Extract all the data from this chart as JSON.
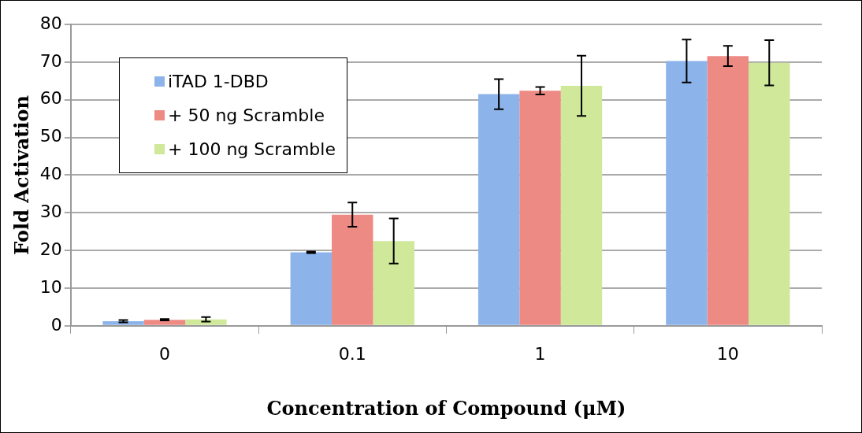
{
  "chart_data": {
    "type": "bar",
    "xlabel": "Concentration of Compound (μM)",
    "ylabel": "Fold Activation",
    "categories": [
      "0",
      "0.1",
      "1",
      "10"
    ],
    "series": [
      {
        "name": "iTAD 1-DBD",
        "color": "#8db4ea",
        "values": [
          1.2,
          19.5,
          61.5,
          70.3
        ],
        "errors": [
          0.3,
          0.2,
          4,
          5.7
        ]
      },
      {
        "name": "+ 50 ng Scramble",
        "color": "#ee8a84",
        "values": [
          1.6,
          29.5,
          62.4,
          71.6
        ],
        "errors": [
          0.2,
          3.2,
          1,
          2.7
        ]
      },
      {
        "name": "+ 100 ng Scramble",
        "color": "#cfe89a",
        "values": [
          1.7,
          22.5,
          63.7,
          69.8
        ],
        "errors": [
          0.6,
          6,
          8,
          6
        ]
      }
    ],
    "ylim": [
      0,
      80
    ],
    "yticks": [
      0,
      10,
      20,
      30,
      40,
      50,
      60,
      70,
      80
    ],
    "grid": "y",
    "legend": "top left"
  }
}
